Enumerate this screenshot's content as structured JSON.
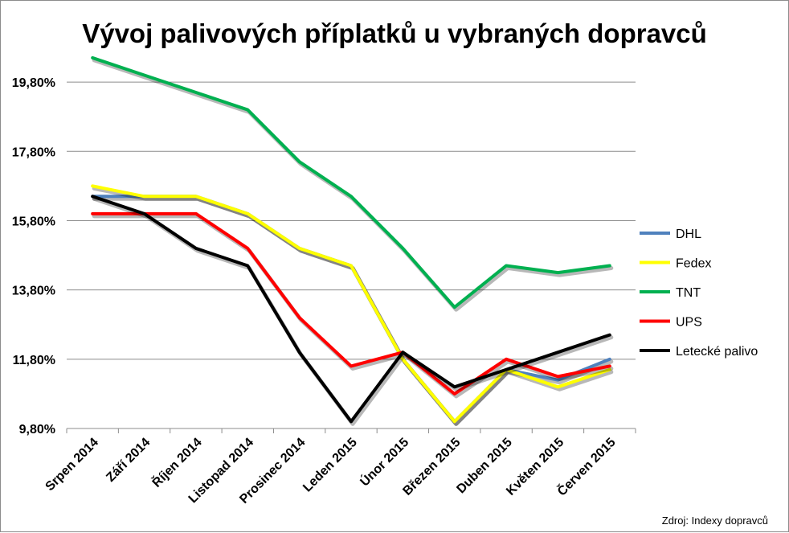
{
  "chart_data": {
    "type": "line",
    "title": "Vývoj palivových příplatků u vybraných dopravců",
    "source_note": "Zdroj: Indexy dopravců",
    "categories": [
      "Srpen 2014",
      "Září 2014",
      "Říjen 2014",
      "Listopad 2014",
      "Prosinec 2014",
      "Leden 2015",
      "Únor 2015",
      "Březen 2015",
      "Duben 2015",
      "Květen 2015",
      "Červen 2015"
    ],
    "y_ticks": [
      "9,80%",
      "11,80%",
      "13,80%",
      "15,80%",
      "17,80%",
      "19,80%"
    ],
    "ylim": [
      9.8,
      20.8
    ],
    "grid": true,
    "legend_position": "right",
    "series": [
      {
        "name": "DHL",
        "color": "#4f81bd",
        "values": [
          16.5,
          16.5,
          16.5,
          16.0,
          15.0,
          14.5,
          11.8,
          10.0,
          11.5,
          11.2,
          11.8
        ]
      },
      {
        "name": "Fedex",
        "color": "#ffff00",
        "values": [
          16.8,
          16.5,
          16.5,
          16.0,
          15.0,
          14.5,
          11.8,
          10.0,
          11.5,
          11.0,
          11.5
        ]
      },
      {
        "name": "TNT",
        "color": "#00b050",
        "values": [
          20.5,
          20.0,
          19.5,
          19.0,
          17.5,
          16.5,
          15.0,
          13.3,
          14.5,
          14.3,
          14.5
        ]
      },
      {
        "name": "UPS",
        "color": "#ff0000",
        "values": [
          16.0,
          16.0,
          16.0,
          15.0,
          13.0,
          11.6,
          12.0,
          10.8,
          11.8,
          11.3,
          11.6
        ]
      },
      {
        "name": "Letecké palivo",
        "color": "#000000",
        "values": [
          16.5,
          16.0,
          15.0,
          14.5,
          12.0,
          10.0,
          12.0,
          11.0,
          11.5,
          12.0,
          12.5
        ]
      }
    ]
  }
}
